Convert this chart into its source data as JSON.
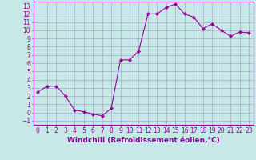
{
  "x": [
    0,
    1,
    2,
    3,
    4,
    5,
    6,
    7,
    8,
    9,
    10,
    11,
    12,
    13,
    14,
    15,
    16,
    17,
    18,
    19,
    20,
    21,
    22,
    23
  ],
  "y": [
    2.5,
    3.2,
    3.2,
    2.0,
    0.3,
    0.1,
    -0.2,
    -0.4,
    0.5,
    6.4,
    6.4,
    7.5,
    12.0,
    12.0,
    12.8,
    13.2,
    12.0,
    11.6,
    10.2,
    10.8,
    10.0,
    9.3,
    9.8,
    9.7
  ],
  "line_color": "#990099",
  "marker": "D",
  "marker_size": 2,
  "bg_color": "#c8e8e8",
  "grid_color": "#aaaacc",
  "xlabel": "Windchill (Refroidissement éolien,°C)",
  "ylabel": "",
  "xlim": [
    -0.5,
    23.5
  ],
  "ylim": [
    -1.5,
    13.5
  ],
  "yticks": [
    -1,
    0,
    1,
    2,
    3,
    4,
    5,
    6,
    7,
    8,
    9,
    10,
    11,
    12,
    13
  ],
  "xticks": [
    0,
    1,
    2,
    3,
    4,
    5,
    6,
    7,
    8,
    9,
    10,
    11,
    12,
    13,
    14,
    15,
    16,
    17,
    18,
    19,
    20,
    21,
    22,
    23
  ],
  "tick_fontsize": 5.5,
  "xlabel_fontsize": 6.5,
  "tick_color": "#990099",
  "label_color": "#990099",
  "spine_color": "#990099"
}
